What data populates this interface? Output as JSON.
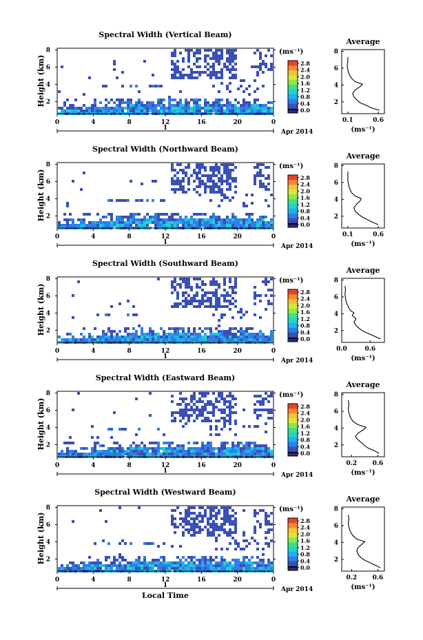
{
  "chart_data": [
    {
      "type": "heatmap",
      "title": "Spectral Width (Vertical Beam)",
      "xlabel": "",
      "ylabel": "Height (km)",
      "x_ticks": [
        "0",
        "4",
        "8",
        "12",
        "16",
        "20",
        "0"
      ],
      "y_ticks": [
        "2",
        "4",
        "6",
        "8"
      ],
      "xlim": [
        0,
        24
      ],
      "ylim": [
        0.6,
        8.2
      ],
      "date_label": "1",
      "month_label": "Apr 2014",
      "colorbar": {
        "unit": "(ms⁻¹)",
        "ticks": [
          "2.8",
          "2.4",
          "2.0",
          "1.6",
          "1.2",
          "0.8",
          "0.4",
          "0.0"
        ]
      },
      "average": {
        "title": "Average",
        "xlabel": "(ms⁻¹)",
        "x_ticks": [
          "0.1",
          "0.6"
        ],
        "y_ticks": [
          "2",
          "4",
          "6",
          "8"
        ],
        "xlim": [
          0,
          0.7
        ],
        "profile": [
          [
            1.0,
            0.62
          ],
          [
            1.3,
            0.48
          ],
          [
            1.6,
            0.4
          ],
          [
            1.9,
            0.3
          ],
          [
            2.2,
            0.25
          ],
          [
            2.6,
            0.2
          ],
          [
            3.0,
            0.18
          ],
          [
            3.4,
            0.22
          ],
          [
            3.8,
            0.3
          ],
          [
            4.1,
            0.34
          ],
          [
            4.4,
            0.22
          ],
          [
            4.8,
            0.16
          ],
          [
            5.3,
            0.12
          ],
          [
            5.8,
            0.1
          ],
          [
            6.3,
            0.09
          ],
          [
            6.8,
            0.1
          ],
          [
            7.3,
            0.1
          ]
        ]
      }
    },
    {
      "type": "heatmap",
      "title": "Spectral Width (Northward Beam)",
      "xlabel": "",
      "ylabel": "Height (km)",
      "x_ticks": [
        "0",
        "4",
        "8",
        "12",
        "16",
        "20",
        "0"
      ],
      "y_ticks": [
        "2",
        "4",
        "6",
        "8"
      ],
      "xlim": [
        0,
        24
      ],
      "ylim": [
        0.6,
        8.2
      ],
      "date_label": "1",
      "month_label": "Apr 2014",
      "colorbar": {
        "unit": "(ms⁻¹)",
        "ticks": [
          "2.8",
          "2.4",
          "2.0",
          "1.6",
          "1.2",
          "0.8",
          "0.4",
          "0.0"
        ]
      },
      "average": {
        "title": "Average",
        "xlabel": "(ms⁻¹)",
        "x_ticks": [
          "0.1",
          "0.6"
        ],
        "y_ticks": [
          "2",
          "4",
          "6",
          "8"
        ],
        "xlim": [
          0,
          0.7
        ],
        "profile": [
          [
            1.0,
            0.6
          ],
          [
            1.3,
            0.5
          ],
          [
            1.6,
            0.42
          ],
          [
            1.9,
            0.34
          ],
          [
            2.2,
            0.28
          ],
          [
            2.6,
            0.22
          ],
          [
            3.0,
            0.2
          ],
          [
            3.4,
            0.24
          ],
          [
            3.8,
            0.3
          ],
          [
            4.1,
            0.32
          ],
          [
            4.4,
            0.22
          ],
          [
            4.8,
            0.16
          ],
          [
            5.3,
            0.13
          ],
          [
            5.8,
            0.11
          ],
          [
            6.3,
            0.1
          ],
          [
            6.8,
            0.1
          ],
          [
            7.3,
            0.1
          ]
        ]
      }
    },
    {
      "type": "heatmap",
      "title": "Spectral Width (Southward Beam)",
      "xlabel": "",
      "ylabel": "Height (km)",
      "x_ticks": [
        "0",
        "4",
        "8",
        "12",
        "16",
        "20",
        "0"
      ],
      "y_ticks": [
        "2",
        "4",
        "6",
        "8"
      ],
      "xlim": [
        0,
        24
      ],
      "ylim": [
        0.6,
        8.2
      ],
      "date_label": "1",
      "month_label": "Apr 2014",
      "colorbar": {
        "unit": "(ms⁻¹)",
        "ticks": [
          "2.8",
          "2.4",
          "2.0",
          "1.6",
          "1.2",
          "0.8",
          "0.4",
          "0.0"
        ]
      },
      "average": {
        "title": "Average",
        "xlabel": "(ms⁻¹)",
        "x_ticks": [
          "0.0",
          "0.6"
        ],
        "y_ticks": [
          "2",
          "4",
          "6",
          "8"
        ],
        "xlim": [
          0,
          0.9
        ],
        "profile": [
          [
            1.0,
            0.82
          ],
          [
            1.3,
            0.7
          ],
          [
            1.6,
            0.58
          ],
          [
            1.9,
            0.46
          ],
          [
            2.2,
            0.38
          ],
          [
            2.6,
            0.3
          ],
          [
            3.0,
            0.26
          ],
          [
            3.4,
            0.3
          ],
          [
            3.8,
            0.22
          ],
          [
            4.1,
            0.26
          ],
          [
            4.4,
            0.18
          ],
          [
            4.8,
            0.14
          ],
          [
            5.3,
            0.1
          ],
          [
            5.8,
            0.08
          ],
          [
            6.3,
            0.07
          ],
          [
            6.8,
            0.08
          ],
          [
            7.3,
            0.07
          ]
        ]
      }
    },
    {
      "type": "heatmap",
      "title": "Spectral Width (Eastward Beam)",
      "xlabel": "",
      "ylabel": "Height (km)",
      "x_ticks": [
        "0",
        "4",
        "8",
        "12",
        "16",
        "20",
        "0"
      ],
      "y_ticks": [
        "2",
        "4",
        "6",
        "8"
      ],
      "xlim": [
        0,
        24
      ],
      "ylim": [
        0.6,
        8.2
      ],
      "date_label": "1",
      "month_label": "Apr 2014",
      "colorbar": {
        "unit": "(ms⁻¹)",
        "ticks": [
          "2.8",
          "2.4",
          "2.0",
          "1.6",
          "1.2",
          "0.8",
          "0.4",
          "0.0"
        ]
      },
      "average": {
        "title": "Average",
        "xlabel": "(ms⁻¹)",
        "x_ticks": [
          "0.2",
          "0.6"
        ],
        "y_ticks": [
          "2",
          "4",
          "6",
          "8"
        ],
        "xlim": [
          0.05,
          0.7
        ],
        "profile": [
          [
            1.0,
            0.62
          ],
          [
            1.3,
            0.55
          ],
          [
            1.6,
            0.46
          ],
          [
            1.9,
            0.4
          ],
          [
            2.2,
            0.36
          ],
          [
            2.6,
            0.3
          ],
          [
            3.0,
            0.26
          ],
          [
            3.4,
            0.3
          ],
          [
            3.8,
            0.38
          ],
          [
            4.1,
            0.42
          ],
          [
            4.4,
            0.3
          ],
          [
            4.8,
            0.22
          ],
          [
            5.3,
            0.18
          ],
          [
            5.8,
            0.16
          ],
          [
            6.3,
            0.15
          ],
          [
            6.8,
            0.16
          ],
          [
            7.3,
            0.15
          ]
        ]
      }
    },
    {
      "type": "heatmap",
      "title": "Spectral Width (Westward Beam)",
      "xlabel": "Local Time",
      "ylabel": "Height (km)",
      "x_ticks": [
        "0",
        "4",
        "8",
        "12",
        "16",
        "20",
        "0"
      ],
      "y_ticks": [
        "2",
        "4",
        "6",
        "8"
      ],
      "xlim": [
        0,
        24
      ],
      "ylim": [
        0.6,
        8.2
      ],
      "date_label": "1",
      "month_label": "Apr 2014",
      "colorbar": {
        "unit": "(ms⁻¹)",
        "ticks": [
          "2.8",
          "2.4",
          "2.0",
          "1.6",
          "1.2",
          "0.8",
          "0.4",
          "0.0"
        ]
      },
      "average": {
        "title": "Average",
        "xlabel": "(ms⁻¹)",
        "x_ticks": [
          "0.2",
          "0.6"
        ],
        "y_ticks": [
          "2",
          "4",
          "6",
          "8"
        ],
        "xlim": [
          0.05,
          0.7
        ],
        "profile": [
          [
            1.0,
            0.64
          ],
          [
            1.3,
            0.56
          ],
          [
            1.6,
            0.48
          ],
          [
            1.9,
            0.4
          ],
          [
            2.2,
            0.34
          ],
          [
            2.6,
            0.3
          ],
          [
            3.0,
            0.28
          ],
          [
            3.4,
            0.3
          ],
          [
            3.8,
            0.36
          ],
          [
            4.1,
            0.4
          ],
          [
            4.4,
            0.28
          ],
          [
            4.8,
            0.22
          ],
          [
            5.3,
            0.18
          ],
          [
            5.8,
            0.16
          ],
          [
            6.3,
            0.15
          ],
          [
            6.8,
            0.16
          ],
          [
            7.3,
            0.15
          ]
        ]
      }
    }
  ],
  "colors": {
    "colorbar": [
      "#2a2d7a",
      "#3a4fb8",
      "#2f7fe6",
      "#1fb3f0",
      "#22d3c6",
      "#3fe08a",
      "#8fe84a",
      "#d6e83a",
      "#f6c23a",
      "#f58a2e",
      "#e8432a"
    ]
  }
}
